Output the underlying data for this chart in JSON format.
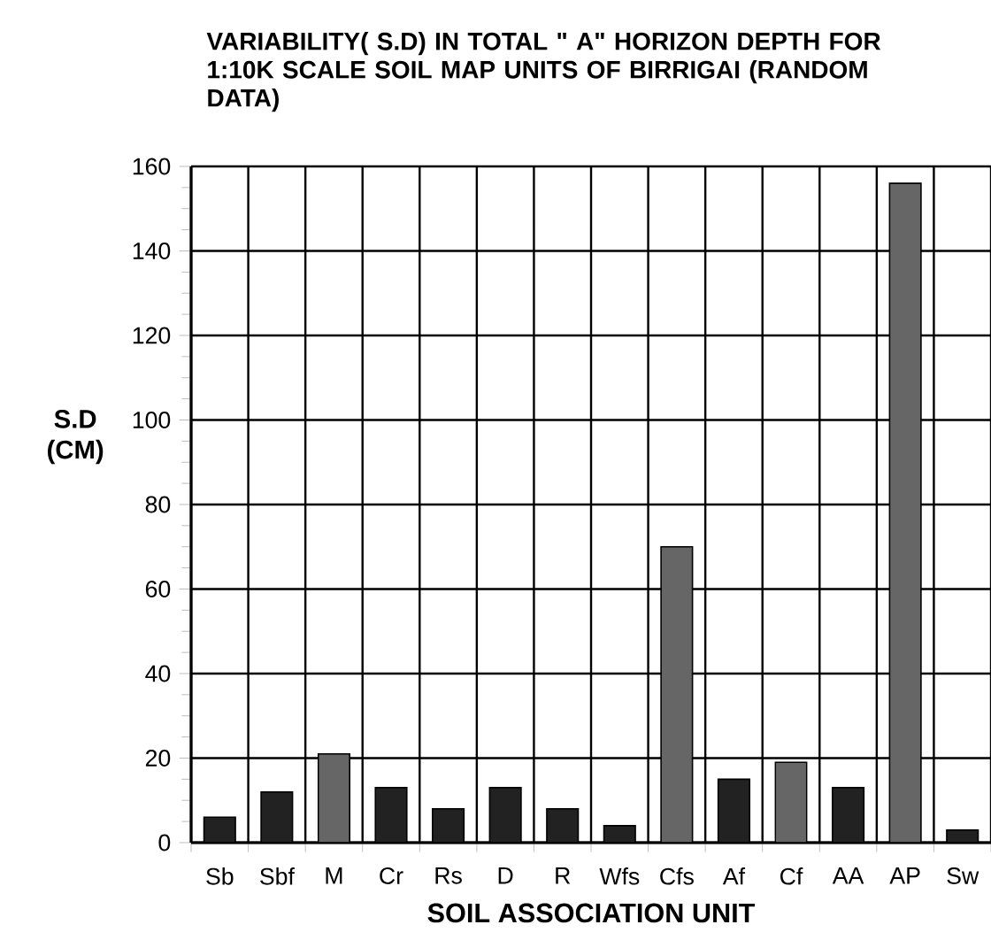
{
  "chart_data": {
    "type": "bar",
    "title": "VARIABILITY( S.D) IN  TOTAL \" A\" HORIZON DEPTH FOR 1:10K SCALE SOIL MAP UNITS OF BIRRIGAI (RANDOM  DATA)",
    "xlabel": "SOIL ASSOCIATION UNIT",
    "ylabel": "S.D (CM)",
    "categories": [
      "Sb",
      "Sbf",
      "M",
      "Cr",
      "Rs",
      "D",
      "R",
      "Wfs",
      "Cfs",
      "Af",
      "Cf",
      "AA",
      "AP",
      "Sw"
    ],
    "values": [
      6,
      12,
      21,
      13,
      8,
      13,
      8,
      4,
      70,
      15,
      19,
      13,
      156,
      3
    ],
    "colors": [
      "#222222",
      "#222222",
      "#666666",
      "#222222",
      "#222222",
      "#222222",
      "#222222",
      "#222222",
      "#666666",
      "#222222",
      "#666666",
      "#222222",
      "#666666",
      "#222222"
    ],
    "ylim": [
      0,
      160
    ],
    "yticks": [
      0,
      20,
      40,
      60,
      80,
      100,
      120,
      140,
      160
    ],
    "grid": true
  }
}
